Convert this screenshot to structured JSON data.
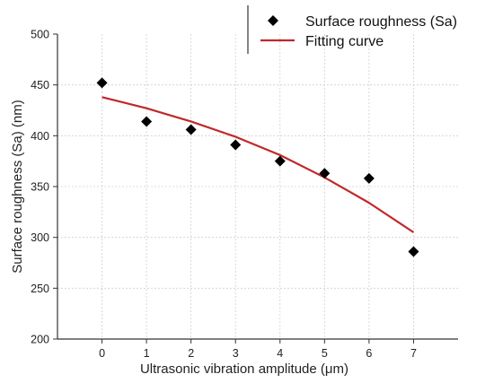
{
  "chart_data": {
    "type": "scatter",
    "title": "",
    "xlabel": "Ultrasonic vibration amplitude (μm)",
    "ylabel": "Surface roughness (Sa) (nm)",
    "xlim": [
      -1,
      8
    ],
    "ylim": [
      200,
      500
    ],
    "x_ticks": [
      0,
      1,
      2,
      3,
      4,
      5,
      6,
      7
    ],
    "y_ticks": [
      200,
      250,
      300,
      350,
      400,
      450,
      500
    ],
    "grid": true,
    "legend_position": "top-right",
    "series": [
      {
        "name": "Surface roughness (Sa)",
        "kind": "scatter",
        "marker": "diamond",
        "color": "#000000",
        "x": [
          0,
          1,
          2,
          3,
          4,
          5,
          6,
          7
        ],
        "y": [
          452,
          414,
          406,
          391,
          375,
          363,
          358,
          286
        ]
      },
      {
        "name": "Fitting curve",
        "kind": "line",
        "color": "#c0282a",
        "x": [
          0,
          1,
          2,
          3,
          4,
          5,
          6,
          7
        ],
        "y": [
          438,
          427,
          414,
          399,
          381,
          359,
          334,
          305
        ]
      }
    ]
  }
}
